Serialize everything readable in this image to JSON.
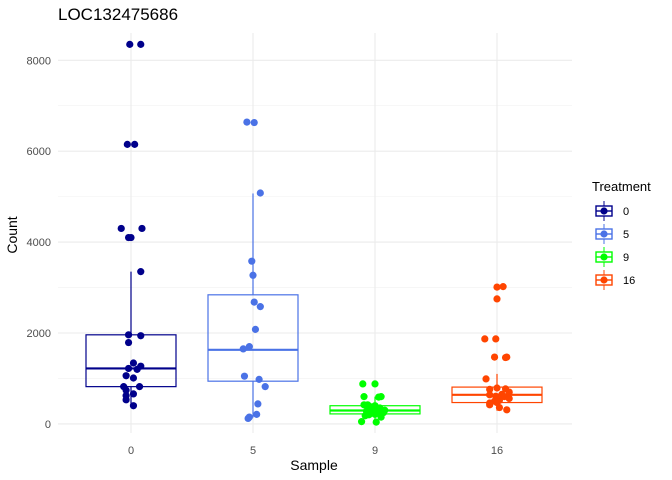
{
  "chart_data": {
    "type": "box",
    "title": "LOC132475686",
    "xlabel": "Sample",
    "ylabel": "Count",
    "ylim": [
      -200,
      8600
    ],
    "yticks": [
      0,
      2000,
      4000,
      6000,
      8000
    ],
    "grid": true,
    "categories": [
      "0",
      "5",
      "9",
      "16"
    ],
    "legend": {
      "title": "Treatment",
      "position": "right",
      "entries": [
        "0",
        "5",
        "9",
        "16"
      ]
    },
    "colors": [
      "#00008B",
      "#4A72E6",
      "#00FF00",
      "#FF4500"
    ],
    "boxes": [
      {
        "category": "0",
        "q1": 820,
        "median": 1220,
        "q3": 1960,
        "whisker_low": 400,
        "whisker_high": 3350
      },
      {
        "category": "5",
        "q1": 940,
        "median": 1630,
        "q3": 2840,
        "whisker_low": 140,
        "whisker_high": 5070
      },
      {
        "category": "9",
        "q1": 220,
        "median": 295,
        "q3": 400,
        "whisker_low": 50,
        "whisker_high": 600
      },
      {
        "category": "16",
        "q1": 470,
        "median": 640,
        "q3": 810,
        "whisker_low": 290,
        "whisker_high": 1100
      }
    ],
    "points": [
      {
        "category": "0",
        "x": [
          -0.01,
          0.08,
          -0.03,
          0.03,
          -0.08,
          -0.02,
          0.09,
          0.0,
          0.08,
          -0.02,
          0.08,
          -0.02,
          0.02,
          0.08,
          -0.02,
          0.05,
          -0.04,
          0.02,
          0.07,
          -0.06,
          -0.04,
          0.02,
          -0.04,
          -0.04,
          0.02
        ],
        "y": [
          8350,
          8350,
          6150,
          6150,
          4300,
          4100,
          4300,
          4100,
          3350,
          1960,
          1940,
          1790,
          1340,
          1270,
          1220,
          1200,
          1060,
          1010,
          820,
          820,
          740,
          660,
          620,
          530,
          400
        ]
      },
      {
        "category": "5",
        "x": [
          -0.05,
          0.01,
          0.06,
          -0.01,
          0.0,
          0.01,
          0.02,
          0.06,
          -0.03,
          -0.08,
          -0.07,
          0.05,
          0.1,
          0.04,
          0.03,
          -0.03,
          -0.04
        ],
        "y": [
          6640,
          6630,
          5080,
          3580,
          3270,
          2680,
          2080,
          2580,
          1700,
          1650,
          1050,
          980,
          820,
          440,
          210,
          150,
          120
        ]
      },
      {
        "category": "9",
        "x": [
          -0.1,
          0.0,
          -0.09,
          0.05,
          0.03,
          -0.06,
          0.0,
          -0.09,
          -0.04,
          0.04,
          0.08,
          -0.02,
          -0.07,
          0.02,
          0.07,
          -0.04,
          0.0,
          -0.05,
          -0.08,
          0.05,
          -0.11,
          0.01
        ],
        "y": [
          880,
          880,
          600,
          600,
          590,
          420,
          400,
          420,
          380,
          350,
          300,
          280,
          280,
          260,
          250,
          240,
          210,
          200,
          180,
          150,
          50,
          40
        ]
      },
      {
        "category": "16",
        "x": [
          0.05,
          0.0,
          0.0,
          -0.1,
          -0.01,
          0.08,
          -0.02,
          0.07,
          -0.09,
          0.0,
          0.07,
          -0.06,
          0.1,
          0.04,
          -0.06,
          -0.01,
          0.06,
          0.1,
          0.02,
          -0.02,
          0.0,
          -0.06,
          -0.06,
          0.02,
          0.08
        ],
        "y": [
          3020,
          3010,
          2750,
          1870,
          1870,
          1470,
          1470,
          1460,
          990,
          790,
          770,
          760,
          700,
          650,
          640,
          610,
          600,
          560,
          520,
          500,
          470,
          460,
          420,
          360,
          310
        ]
      }
    ]
  }
}
